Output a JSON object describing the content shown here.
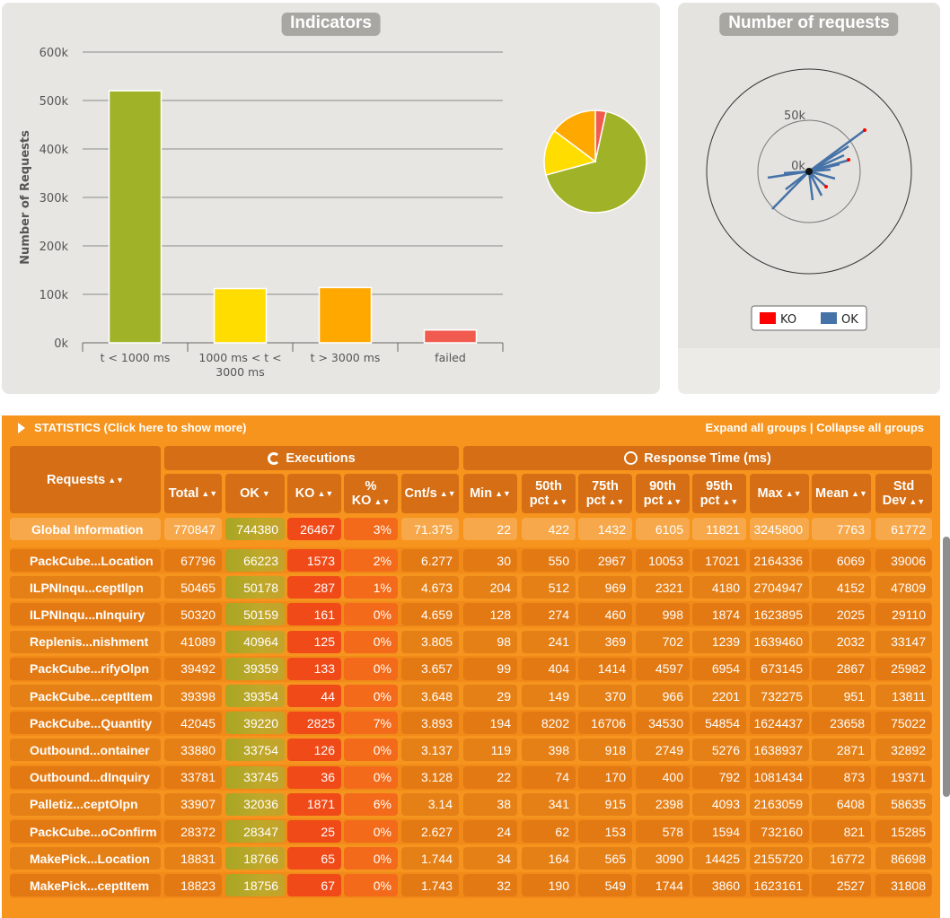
{
  "indicators": {
    "title": "Indicators",
    "ylabel": "Number of Requests",
    "yticks": [
      "0k",
      "100k",
      "200k",
      "300k",
      "400k",
      "500k",
      "600k"
    ],
    "categories": [
      "t < 1000 ms",
      "1000 ms < t < 3000 ms",
      "t > 3000 ms",
      "failed"
    ],
    "category_lines": [
      [
        "t < 1000 ms"
      ],
      [
        "1000 ms < t <",
        "3000 ms"
      ],
      [
        "t > 3000 ms"
      ],
      [
        "failed"
      ]
    ],
    "colors": [
      "#a0b228",
      "#ffdd00",
      "#ffa900",
      "#f15b4f"
    ]
  },
  "chart_data": [
    {
      "type": "bar",
      "title": "Indicators",
      "xlabel": "",
      "ylabel": "Number of Requests",
      "categories": [
        "t < 1000 ms",
        "1000 ms < t < 3000 ms",
        "t > 3000 ms",
        "failed"
      ],
      "values": [
        520000,
        112000,
        114000,
        26467
      ],
      "ylim": [
        0,
        600000
      ]
    },
    {
      "type": "pie",
      "title": "",
      "categories": [
        "t < 1000 ms",
        "1000 ms < t < 3000 ms",
        "t > 3000 ms",
        "failed"
      ],
      "values": [
        520000,
        112000,
        114000,
        26467
      ]
    }
  ],
  "requests_panel": {
    "title": "Number of requests",
    "rings": [
      "50k",
      "0k"
    ],
    "legend": [
      {
        "label": "KO",
        "color": "#ff0000"
      },
      {
        "label": "OK",
        "color": "#4572a7"
      }
    ]
  },
  "statistics": {
    "title": "STATISTICS (Click here to show more)",
    "expand_all": "Expand all groups",
    "separator": "|",
    "collapse_all": "Collapse all groups",
    "executions_label": "Executions",
    "response_time_label": "Response Time (ms)",
    "requests_label": "Requests",
    "sort_arrows": "▲▼",
    "sorted_arrow": "▼",
    "columns": [
      "Total",
      "OK",
      "KO",
      "% KO",
      "Cnt/s",
      "Min",
      "50th pct",
      "75th pct",
      "90th pct",
      "95th pct",
      "Max",
      "Mean",
      "Std Dev"
    ],
    "global": {
      "name": "Global Information",
      "values": [
        "770847",
        "744380",
        "26467",
        "3%",
        "71.375",
        "22",
        "422",
        "1432",
        "6105",
        "11821",
        "3245800",
        "7763",
        "61772"
      ]
    },
    "rows": [
      {
        "name": "PackCube...Location",
        "values": [
          "67796",
          "66223",
          "1573",
          "2%",
          "6.277",
          "30",
          "550",
          "2967",
          "10053",
          "17021",
          "2164336",
          "6069",
          "39006"
        ]
      },
      {
        "name": "ILPNInqu...ceptIlpn",
        "values": [
          "50465",
          "50178",
          "287",
          "1%",
          "4.673",
          "204",
          "512",
          "969",
          "2321",
          "4180",
          "2704947",
          "4152",
          "47809"
        ]
      },
      {
        "name": "ILPNInqu...nInquiry",
        "values": [
          "50320",
          "50159",
          "161",
          "0%",
          "4.659",
          "128",
          "274",
          "460",
          "998",
          "1874",
          "1623895",
          "2025",
          "29110"
        ]
      },
      {
        "name": "Replenis...nishment",
        "values": [
          "41089",
          "40964",
          "125",
          "0%",
          "3.805",
          "98",
          "241",
          "369",
          "702",
          "1239",
          "1639460",
          "2032",
          "33147"
        ]
      },
      {
        "name": "PackCube...rifyOlpn",
        "values": [
          "39492",
          "39359",
          "133",
          "0%",
          "3.657",
          "99",
          "404",
          "1414",
          "4597",
          "6954",
          "673145",
          "2867",
          "25982"
        ]
      },
      {
        "name": "PackCube...ceptItem",
        "values": [
          "39398",
          "39354",
          "44",
          "0%",
          "3.648",
          "29",
          "149",
          "370",
          "966",
          "2201",
          "732275",
          "951",
          "13811"
        ]
      },
      {
        "name": "PackCube...Quantity",
        "values": [
          "42045",
          "39220",
          "2825",
          "7%",
          "3.893",
          "194",
          "8202",
          "16706",
          "34530",
          "54854",
          "1624437",
          "23658",
          "75022"
        ]
      },
      {
        "name": "Outbound...ontainer",
        "values": [
          "33880",
          "33754",
          "126",
          "0%",
          "3.137",
          "119",
          "398",
          "918",
          "2749",
          "5276",
          "1638937",
          "2871",
          "32892"
        ]
      },
      {
        "name": "Outbound...dInquiry",
        "values": [
          "33781",
          "33745",
          "36",
          "0%",
          "3.128",
          "22",
          "74",
          "170",
          "400",
          "792",
          "1081434",
          "873",
          "19371"
        ]
      },
      {
        "name": "Palletiz...ceptOlpn",
        "values": [
          "33907",
          "32036",
          "1871",
          "6%",
          "3.14",
          "38",
          "341",
          "915",
          "2398",
          "4093",
          "2163059",
          "6408",
          "58635"
        ]
      },
      {
        "name": "PackCube...oConfirm",
        "values": [
          "28372",
          "28347",
          "25",
          "0%",
          "2.627",
          "24",
          "62",
          "153",
          "578",
          "1594",
          "732160",
          "821",
          "15285"
        ]
      },
      {
        "name": "MakePick...Location",
        "values": [
          "18831",
          "18766",
          "65",
          "0%",
          "1.744",
          "34",
          "164",
          "565",
          "3090",
          "14425",
          "2155720",
          "16772",
          "86698"
        ]
      },
      {
        "name": "MakePick...ceptItem",
        "values": [
          "18823",
          "18756",
          "67",
          "0%",
          "1.743",
          "32",
          "190",
          "549",
          "1744",
          "3860",
          "1623161",
          "2527",
          "31808"
        ]
      }
    ]
  }
}
